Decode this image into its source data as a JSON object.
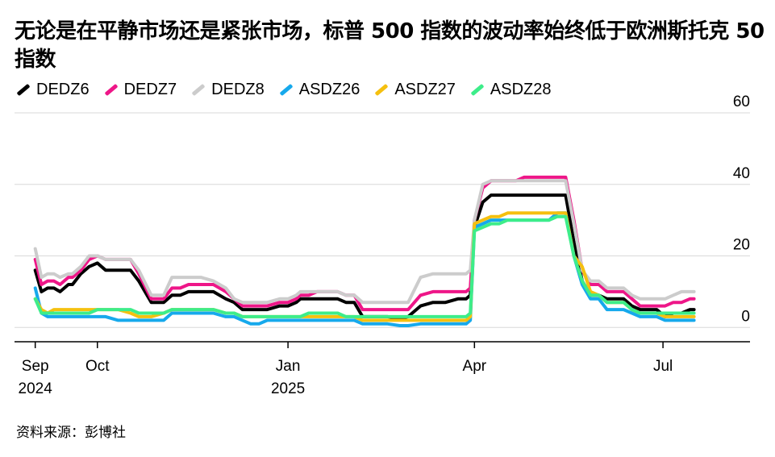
{
  "header": {
    "title": "无论是在平静市场还是紧张市场，标普 500 指数的波动率始终低于欧洲斯托克 50 指数"
  },
  "footer": {
    "source": "资料来源：彭博社"
  },
  "colors": {
    "DEDZ6": "#000000",
    "DEDZ7": "#ee1688",
    "DEDZ8": "#cccccc",
    "ASDZ26": "#16a9ec",
    "ASDZ27": "#f5c00f",
    "ASDZ28": "#3ded8a",
    "gridline": "#d8d8d8",
    "axis": "#000000"
  },
  "chart_data": {
    "type": "line",
    "title": "无论是在平静市场还是紧张市场，标普 500 指数的波动率始终低于欧洲斯托克 50 指数",
    "xlabel": "",
    "ylabel": "",
    "ylim": [
      -4,
      60
    ],
    "y_ticks": [
      0,
      20,
      40,
      60
    ],
    "y_tick_labels": [
      "0",
      "20",
      "40",
      "60"
    ],
    "x_ticks": [
      {
        "label": "Sep",
        "sublabel": "2024",
        "day": 0
      },
      {
        "label": "Oct",
        "sublabel": "",
        "day": 30
      },
      {
        "label": "Jan",
        "sublabel": "2025",
        "day": 122
      },
      {
        "label": "Apr",
        "sublabel": "",
        "day": 212
      },
      {
        "label": "Jul",
        "sublabel": "",
        "day": 303
      }
    ],
    "x_range_days": [
      -10,
      345
    ],
    "grid": true,
    "legend_position": "top-left",
    "series": [
      {
        "name": "DEDZ6",
        "color": "#000000",
        "x": [
          0,
          3,
          6,
          9,
          12,
          16,
          18,
          22,
          26,
          30,
          34,
          40,
          46,
          50,
          56,
          62,
          66,
          70,
          74,
          80,
          86,
          92,
          96,
          100,
          104,
          108,
          112,
          118,
          122,
          126,
          128,
          132,
          136,
          140,
          146,
          150,
          154,
          158,
          162,
          166,
          170,
          176,
          180,
          186,
          192,
          198,
          204,
          208,
          210,
          212,
          216,
          220,
          224,
          228,
          232,
          236,
          240,
          244,
          248,
          252,
          256,
          260,
          264,
          268,
          272,
          276,
          280,
          284,
          288,
          292,
          296,
          300,
          304,
          308,
          312,
          316,
          318
        ],
        "y": [
          16,
          10,
          11,
          11,
          10,
          12,
          12,
          15,
          17,
          18,
          16,
          16,
          16,
          13,
          7,
          7,
          9,
          9,
          10,
          10,
          10,
          8,
          7,
          5,
          5,
          5,
          5,
          6,
          6,
          7,
          8,
          8,
          8,
          8,
          8,
          7,
          7,
          3,
          3,
          3,
          3,
          2.5,
          3,
          6,
          7,
          7,
          8,
          8,
          9,
          28,
          35,
          37,
          37,
          37,
          37,
          37,
          37,
          37,
          37,
          37,
          37,
          24,
          13,
          9,
          9,
          8,
          8,
          8,
          6,
          5,
          5,
          5,
          3,
          4,
          4,
          5,
          5
        ]
      },
      {
        "name": "DEDZ7",
        "color": "#ee1688",
        "x": [
          0,
          3,
          6,
          9,
          12,
          16,
          18,
          22,
          26,
          30,
          34,
          40,
          46,
          50,
          56,
          62,
          66,
          70,
          74,
          80,
          86,
          92,
          96,
          100,
          104,
          108,
          112,
          118,
          122,
          126,
          128,
          132,
          136,
          140,
          146,
          150,
          154,
          158,
          162,
          166,
          170,
          176,
          180,
          186,
          192,
          198,
          204,
          208,
          210,
          212,
          216,
          220,
          224,
          228,
          232,
          236,
          240,
          244,
          248,
          252,
          256,
          260,
          264,
          268,
          272,
          276,
          280,
          284,
          288,
          292,
          296,
          300,
          304,
          308,
          312,
          316,
          318
        ],
        "y": [
          19,
          12,
          13,
          13,
          12,
          14,
          14,
          16,
          19,
          20,
          19,
          19,
          19,
          15,
          8,
          8,
          11,
          11,
          12,
          12,
          12,
          10,
          8,
          6,
          6,
          6,
          6,
          7,
          7,
          8,
          9,
          9,
          10,
          10,
          10,
          9,
          9,
          5,
          5,
          5,
          5,
          5,
          5,
          9,
          10,
          10,
          10,
          10,
          11,
          30,
          39,
          41,
          41,
          41,
          41,
          42,
          42,
          42,
          42,
          42,
          42,
          30,
          16,
          12,
          12,
          10,
          10,
          10,
          8,
          6,
          6,
          6,
          6,
          7,
          7,
          8,
          8
        ]
      },
      {
        "name": "DEDZ8",
        "color": "#cccccc",
        "x": [
          0,
          3,
          6,
          9,
          12,
          16,
          18,
          22,
          26,
          30,
          34,
          40,
          46,
          50,
          56,
          62,
          66,
          70,
          74,
          80,
          86,
          92,
          96,
          100,
          104,
          108,
          112,
          118,
          122,
          126,
          128,
          132,
          136,
          140,
          146,
          150,
          154,
          158,
          162,
          166,
          170,
          176,
          180,
          186,
          192,
          198,
          204,
          208,
          210,
          212,
          216,
          220,
          224,
          228,
          232,
          236,
          240,
          244,
          248,
          252,
          256,
          260,
          264,
          268,
          272,
          276,
          280,
          284,
          288,
          292,
          296,
          300,
          304,
          308,
          312,
          316,
          318
        ],
        "y": [
          22,
          14,
          15,
          15,
          14,
          15,
          15,
          17,
          20,
          20,
          19,
          19,
          19,
          16,
          9,
          9,
          14,
          14,
          14,
          14,
          13,
          11,
          8,
          7,
          7,
          7,
          7,
          8,
          8,
          9,
          10,
          10,
          10,
          10,
          10,
          9,
          9,
          7,
          7,
          7,
          7,
          7,
          7,
          14,
          15,
          15,
          15,
          15,
          16,
          30,
          40,
          41,
          41,
          41,
          41,
          41,
          41,
          41,
          41,
          41,
          41,
          29,
          16,
          13,
          13,
          11,
          11,
          11,
          9,
          8,
          8,
          8,
          8,
          9,
          10,
          10,
          10
        ]
      },
      {
        "name": "ASDZ26",
        "color": "#16a9ec",
        "x": [
          0,
          3,
          6,
          9,
          12,
          16,
          18,
          22,
          26,
          30,
          34,
          40,
          46,
          50,
          56,
          62,
          66,
          70,
          74,
          80,
          86,
          92,
          96,
          100,
          104,
          108,
          112,
          118,
          122,
          126,
          128,
          132,
          136,
          140,
          146,
          150,
          154,
          158,
          162,
          166,
          170,
          176,
          180,
          186,
          192,
          198,
          204,
          208,
          210,
          212,
          216,
          220,
          224,
          228,
          232,
          236,
          240,
          244,
          248,
          252,
          256,
          260,
          264,
          268,
          272,
          276,
          280,
          284,
          288,
          292,
          296,
          300,
          304,
          308,
          312,
          316,
          318
        ],
        "y": [
          11,
          4,
          3,
          3,
          3,
          3,
          3,
          3,
          3,
          3,
          3,
          2,
          2,
          2,
          2,
          2,
          4,
          4,
          4,
          4,
          4,
          3,
          3,
          2,
          1,
          1,
          2,
          2,
          2,
          2,
          2,
          2,
          2,
          2,
          2,
          2,
          2,
          1,
          1,
          1,
          1,
          0.5,
          0.5,
          1,
          1,
          1,
          1,
          1,
          2,
          28,
          29,
          30,
          30,
          30,
          30,
          30,
          30,
          30,
          30,
          32,
          32,
          20,
          12,
          8,
          8,
          5,
          5,
          5,
          4,
          3,
          3,
          3,
          2,
          2,
          2,
          2,
          2
        ]
      },
      {
        "name": "ASDZ27",
        "color": "#f5c00f",
        "x": [
          0,
          3,
          6,
          9,
          12,
          16,
          18,
          22,
          26,
          30,
          34,
          40,
          46,
          50,
          56,
          62,
          66,
          70,
          74,
          80,
          86,
          92,
          96,
          100,
          104,
          108,
          112,
          118,
          122,
          126,
          128,
          132,
          136,
          140,
          146,
          150,
          154,
          158,
          162,
          166,
          170,
          176,
          180,
          186,
          192,
          198,
          204,
          208,
          210,
          212,
          216,
          220,
          224,
          228,
          232,
          236,
          240,
          244,
          248,
          252,
          256,
          260,
          264,
          268,
          272,
          276,
          280,
          284,
          288,
          292,
          296,
          300,
          304,
          308,
          312,
          316,
          318
        ],
        "y": [
          8,
          5,
          4,
          5,
          5,
          5,
          5,
          5,
          5,
          5,
          5,
          5,
          4,
          3,
          3,
          4,
          5,
          5,
          5,
          5,
          5,
          4,
          4,
          3,
          3,
          3,
          3,
          3,
          3,
          3,
          3,
          3,
          3,
          3,
          3,
          3,
          3,
          2,
          2,
          2,
          2,
          2,
          2,
          2,
          2,
          2,
          2,
          2,
          3,
          29,
          30,
          31,
          31,
          32,
          32,
          32,
          32,
          32,
          32,
          32,
          32,
          20,
          17,
          10,
          9,
          7,
          7,
          7,
          5,
          4,
          4,
          4,
          3,
          3,
          3,
          3,
          3
        ]
      },
      {
        "name": "ASDZ28",
        "color": "#3ded8a",
        "x": [
          0,
          3,
          6,
          9,
          12,
          16,
          18,
          22,
          26,
          30,
          34,
          40,
          46,
          50,
          56,
          62,
          66,
          70,
          74,
          80,
          86,
          92,
          96,
          100,
          104,
          108,
          112,
          118,
          122,
          126,
          128,
          132,
          136,
          140,
          146,
          150,
          154,
          158,
          162,
          166,
          170,
          176,
          180,
          186,
          192,
          198,
          204,
          208,
          210,
          212,
          216,
          220,
          224,
          228,
          232,
          236,
          240,
          244,
          248,
          252,
          256,
          260,
          264,
          268,
          272,
          276,
          280,
          284,
          288,
          292,
          296,
          300,
          304,
          308,
          312,
          316,
          318
        ],
        "y": [
          8,
          4,
          4,
          4,
          4,
          4,
          4,
          4,
          4,
          5,
          5,
          5,
          5,
          4,
          4,
          4,
          5,
          5,
          5,
          5,
          5,
          4,
          4,
          3,
          3,
          3,
          3,
          3,
          3,
          3,
          3,
          4,
          4,
          4,
          4,
          3,
          3,
          3,
          3,
          3,
          3,
          3,
          3,
          3,
          3,
          3,
          3,
          3,
          4,
          27,
          28,
          29,
          29,
          30,
          30,
          30,
          30,
          30,
          30,
          31,
          31,
          20,
          13,
          9,
          9,
          7,
          7,
          7,
          5,
          4,
          4,
          4,
          4,
          4,
          4,
          4,
          4
        ]
      }
    ]
  }
}
